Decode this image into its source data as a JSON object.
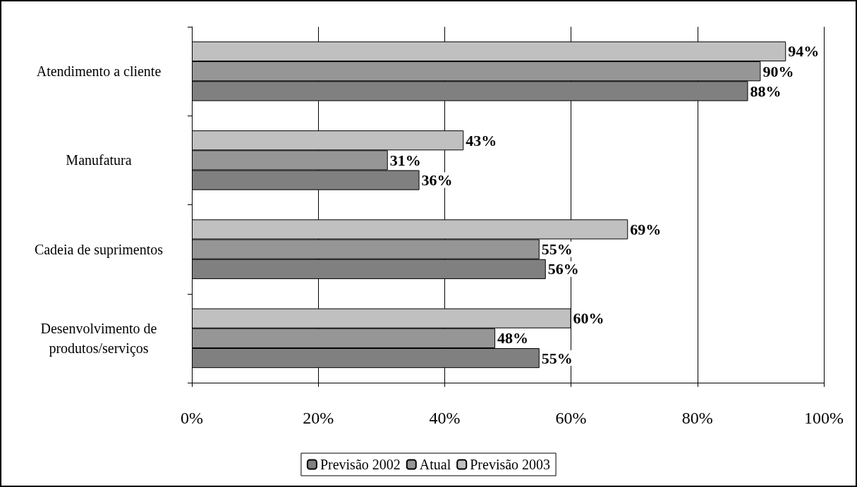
{
  "chart_data": {
    "type": "bar",
    "orientation": "horizontal",
    "categories": [
      "Atendimento a cliente",
      "Manufatura",
      "Cadeia de suprimentos",
      "Desenvolvimento de\nprodutos/serviços"
    ],
    "series": [
      {
        "name": "Previsão 2002",
        "color": "#808080",
        "values": [
          88,
          36,
          56,
          55
        ],
        "value_labels": [
          "88%",
          "36%",
          "56%",
          "55%"
        ]
      },
      {
        "name": "Atual",
        "color": "#969696",
        "values": [
          90,
          31,
          55,
          48
        ],
        "value_labels": [
          "90%",
          "31%",
          "55%",
          "48%"
        ]
      },
      {
        "name": "Previsão 2003",
        "color": "#c0c0c0",
        "values": [
          94,
          43,
          69,
          60
        ],
        "value_labels": [
          "94%",
          "43%",
          "69%",
          "60%"
        ]
      }
    ],
    "xlim": [
      0,
      100
    ],
    "xticks": [
      {
        "value": 0,
        "label": "0%"
      },
      {
        "value": 20,
        "label": "20%"
      },
      {
        "value": 40,
        "label": "40%"
      },
      {
        "value": 60,
        "label": "60%"
      },
      {
        "value": 80,
        "label": "80%"
      },
      {
        "value": 100,
        "label": "100%"
      }
    ],
    "grid": "x",
    "legend": "bottom"
  }
}
